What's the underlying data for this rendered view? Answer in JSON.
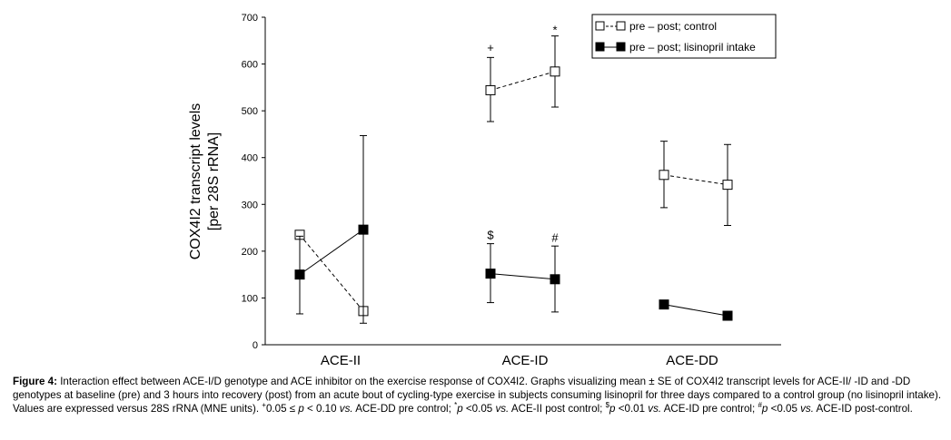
{
  "chart_data": {
    "type": "line",
    "ylabel_line1": "COX4I2 transcript levels",
    "ylabel_line2": "[per 28S rRNA]",
    "ylim": [
      0,
      700
    ],
    "yticks": [
      "0",
      "100",
      "200",
      "300",
      "400",
      "500",
      "600",
      "700"
    ],
    "groups": [
      "ACE-II",
      "ACE-ID",
      "ACE-DD"
    ],
    "points_per_group": [
      "pre",
      "post"
    ],
    "legend_position": "top-right",
    "series": [
      {
        "name": "pre – post; control",
        "marker": "open-square",
        "line": "dashed",
        "color": "#000000",
        "groups": [
          {
            "group": "ACE-II",
            "pre": {
              "y": 235,
              "err_low": null,
              "err_high": null
            },
            "post": {
              "y": 72,
              "err_low": null,
              "err_high": null
            }
          },
          {
            "group": "ACE-ID",
            "pre": {
              "y": 544,
              "err_low": 477,
              "err_high": 614
            },
            "post": {
              "y": 584,
              "err_low": 508,
              "err_high": 660
            }
          },
          {
            "group": "ACE-DD",
            "pre": {
              "y": 363,
              "err_low": 293,
              "err_high": 435
            },
            "post": {
              "y": 342,
              "err_low": 255,
              "err_high": 428
            }
          }
        ]
      },
      {
        "name": "pre – post; lisinopril intake",
        "marker": "filled-square",
        "line": "solid",
        "color": "#000000",
        "groups": [
          {
            "group": "ACE-II",
            "pre": {
              "y": 150,
              "err_low": 66,
              "err_high": 232
            },
            "post": {
              "y": 246,
              "err_low": 46,
              "err_high": 447
            }
          },
          {
            "group": "ACE-ID",
            "pre": {
              "y": 152,
              "err_low": 90,
              "err_high": 216
            },
            "post": {
              "y": 140,
              "err_low": 70,
              "err_high": 211
            }
          },
          {
            "group": "ACE-DD",
            "pre": {
              "y": 86,
              "err_low": null,
              "err_high": null
            },
            "post": {
              "y": 62,
              "err_low": null,
              "err_high": null
            }
          }
        ]
      }
    ],
    "annotations": [
      {
        "text": "+",
        "group": "ACE-ID",
        "point": "pre",
        "y": 634
      },
      {
        "text": "*",
        "group": "ACE-ID",
        "point": "post",
        "y": 672
      },
      {
        "text": "$",
        "group": "ACE-ID",
        "point": "pre",
        "y": 234
      },
      {
        "text": "#",
        "group": "ACE-ID",
        "point": "post",
        "y": 228
      }
    ]
  },
  "caption": {
    "label": "Figure 4:",
    "parts": [
      " Interaction effect between ACE-I/D genotype and ACE inhibitor on the exercise response of COX4I2. Graphs visualizing mean ± SE of COX4I2 transcript levels for ACE-II/ -ID and -DD genotypes at baseline (pre) and 3 hours into recovery (post) from an acute bout of cycling-type exercise in subjects consuming lisinopril for three days compared to a control group (no lisinopril intake). Values are expressed versus 28S rRNA (MNE units). ",
      "+",
      "0.05 ≤ ",
      "p",
      " < 0.10 ",
      "vs.",
      " ACE-DD pre control; ",
      "*",
      "p",
      " <0.05 ",
      "vs.",
      " ACE-II post control; ",
      "$",
      "p",
      " <0.01 ",
      "vs.",
      " ACE-ID pre control; ",
      "#",
      "p",
      " <0.05 ",
      "vs.",
      " ACE-ID post-control."
    ]
  }
}
